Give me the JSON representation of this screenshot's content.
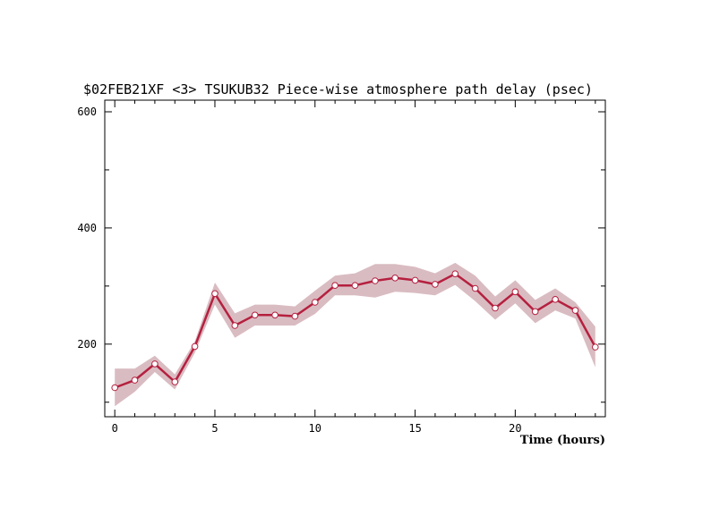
{
  "chart_data": {
    "type": "line",
    "title": "$02FEB21XF <3>  TSUKUB32  Piece-wise atmosphere path delay (psec)",
    "xlabel": "Time (hours)",
    "ylabel": "",
    "xlim": [
      -0.5,
      24.5
    ],
    "ylim": [
      75,
      620
    ],
    "x_ticks": [
      0,
      5,
      10,
      15,
      20
    ],
    "y_ticks": [
      200,
      400,
      600
    ],
    "x_minor_step": 1,
    "y_minor_step": 100,
    "grid": false,
    "legend": "none",
    "series": [
      {
        "x": [
          0,
          1,
          2,
          3,
          4,
          5,
          6,
          7,
          8,
          9,
          10,
          11,
          12,
          13,
          14,
          15,
          16,
          17,
          18,
          19,
          20,
          21,
          22,
          23,
          24
        ],
        "values": [
          125,
          138,
          166,
          135,
          196,
          287,
          232,
          250,
          250,
          248,
          272,
          301,
          301,
          309,
          314,
          310,
          303,
          321,
          296,
          262,
          290,
          256,
          277,
          258,
          195
        ],
        "upper": [
          158,
          158,
          180,
          148,
          205,
          306,
          253,
          268,
          268,
          265,
          292,
          318,
          322,
          338,
          338,
          333,
          322,
          340,
          318,
          282,
          310,
          276,
          296,
          272,
          230
        ],
        "lower": [
          93,
          118,
          152,
          122,
          185,
          268,
          211,
          232,
          232,
          232,
          252,
          284,
          284,
          280,
          290,
          288,
          284,
          302,
          274,
          242,
          270,
          236,
          258,
          244,
          160
        ]
      }
    ],
    "colors": {
      "line": "#b5203f",
      "band": "#d9bcc2",
      "marker_fill": "#ffffff",
      "axis": "#000000"
    }
  }
}
